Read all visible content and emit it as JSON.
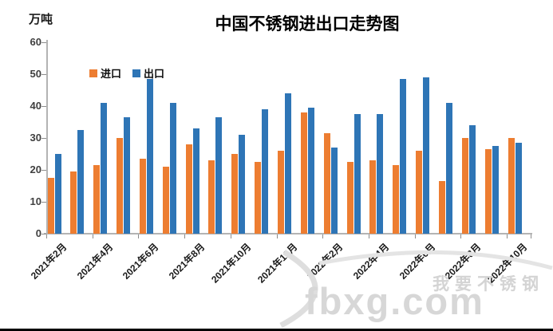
{
  "header": {
    "title": "中国不锈钢进出口走势图",
    "unit_label": "万吨"
  },
  "legend": {
    "import_label": "进口",
    "export_label": "出口"
  },
  "colors": {
    "import": "#ED7D31",
    "export": "#2E75B6",
    "axis": "#b3b3b3",
    "watermark": "#d7d7d7"
  },
  "watermark": {
    "cn_text": "我要不锈钢",
    "site_text": "fbxg.com"
  },
  "chart_data": {
    "type": "bar",
    "title": "中国不锈钢进出口走势图",
    "xlabel": "",
    "ylabel": "万吨",
    "ylim": [
      0,
      60
    ],
    "y_tick_step": 10,
    "grid": false,
    "legend_position": "top-left-inside",
    "categories": [
      "2021年2月",
      "2021年3月",
      "2021年4月",
      "2021年5月",
      "2021年6月",
      "2021年7月",
      "2021年8月",
      "2021年9月",
      "2021年10月",
      "2021年11月",
      "2021年12月",
      "2022年1月",
      "2022年2月",
      "2022年3月",
      "2022年4月",
      "2022年5月",
      "2022年6月",
      "2022年7月",
      "2022年8月",
      "2022年9月",
      "2022年10月"
    ],
    "x_tick_labels_shown": [
      "2021年2月",
      "2021年4月",
      "2021年6月",
      "2021年8月",
      "2021年10月",
      "2021年12月",
      "2022年2月",
      "2022年4月",
      "2022年6月",
      "2022年8月",
      "2022年10月"
    ],
    "series": [
      {
        "name": "进口",
        "color": "#ED7D31",
        "values": [
          17.5,
          19.5,
          21.5,
          30,
          23.5,
          21,
          28,
          23,
          25,
          22.5,
          26,
          38,
          31.5,
          22.5,
          23,
          21.5,
          26,
          16.5,
          30,
          26.5,
          30
        ]
      },
      {
        "name": "出口",
        "color": "#2E75B6",
        "values": [
          25,
          32.5,
          41,
          36.5,
          48.5,
          41,
          33,
          36.5,
          31,
          39,
          44,
          39.5,
          27,
          37.5,
          37.5,
          48.5,
          49,
          41,
          34,
          27.5,
          28.5
        ]
      }
    ]
  }
}
